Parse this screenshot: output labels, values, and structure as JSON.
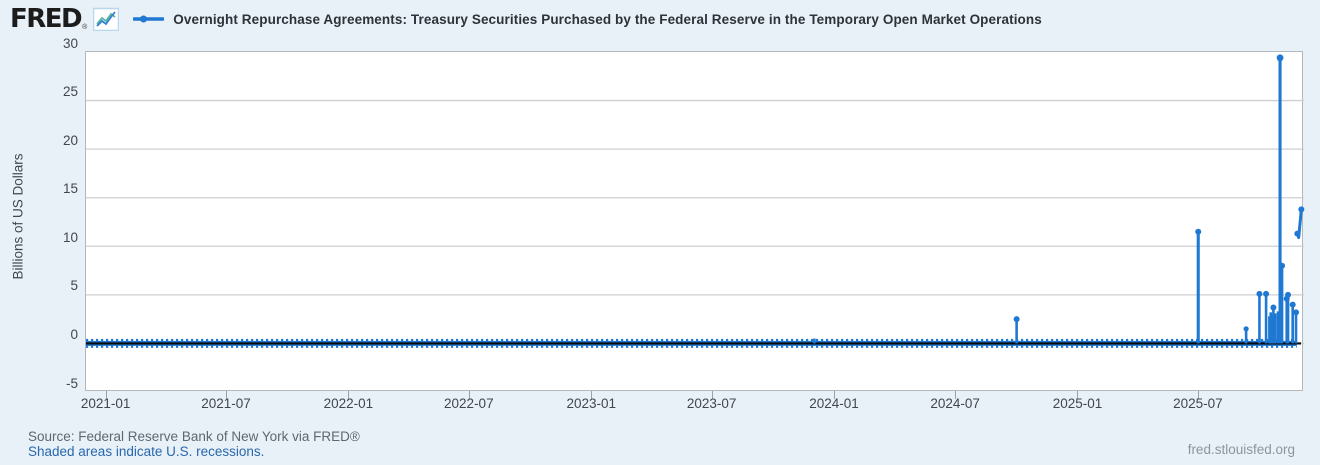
{
  "header": {
    "logo_text": "FRED",
    "logo_reg": "®",
    "series_title": "Overnight Repurchase Agreements: Treasury Securities Purchased by the Federal Reserve in the Temporary Open Market Operations"
  },
  "colors": {
    "background": "#e8f0f8",
    "plot_background": "#ffffff",
    "gridline": "#cfcfcf",
    "plot_border": "#b3b8bd",
    "series_blue": "#1f78d1",
    "zero_line_black": "#0a0a0a",
    "logo_icon_blue": "#2f7fd3",
    "logo_icon_teal": "#58b5a3",
    "link_blue": "#2968ad"
  },
  "chart_data": {
    "type": "line",
    "title": "Overnight Repurchase Agreements: Treasury Securities Purchased by the Federal Reserve in the Temporary Open Market Operations",
    "ylabel": "Billions of US Dollars",
    "ylim": [
      -5,
      30
    ],
    "yticks": [
      30,
      25,
      20,
      15,
      10,
      5,
      0,
      -5
    ],
    "xticks": [
      "2021-01",
      "2021-07",
      "2022-01",
      "2022-07",
      "2023-01",
      "2023-07",
      "2024-01",
      "2024-07",
      "2025-01",
      "2025-07"
    ],
    "x_range": [
      "2020-12-01",
      "2025-12-06"
    ],
    "grid": true,
    "legend_position": "top",
    "baseline": {
      "value": 0,
      "start": "2020-12-01",
      "end": "2025-11-25"
    },
    "spikes": [
      {
        "date": "2023-12-01",
        "value": 0.5,
        "dot": false
      },
      {
        "date": "2024-09-30",
        "value": 2.5,
        "dot": true
      },
      {
        "date": "2025-06-30",
        "value": 11.5,
        "dot": true
      },
      {
        "date": "2025-09-10",
        "value": 1.5,
        "dot": true
      },
      {
        "date": "2025-09-30",
        "value": 5.1,
        "dot": true
      },
      {
        "date": "2025-10-10",
        "value": 5.1,
        "dot": true
      },
      {
        "date": "2025-10-15",
        "value": 2.8,
        "dot": false
      },
      {
        "date": "2025-10-16",
        "value": 2.6,
        "dot": false
      },
      {
        "date": "2025-10-17",
        "value": 3.2,
        "dot": false
      },
      {
        "date": "2025-10-20",
        "value": 2.9,
        "dot": false
      },
      {
        "date": "2025-10-21",
        "value": 3.7,
        "dot": true
      },
      {
        "date": "2025-10-22",
        "value": 2.7,
        "dot": false
      },
      {
        "date": "2025-10-23",
        "value": 3.0,
        "dot": false
      },
      {
        "date": "2025-10-24",
        "value": 3.1,
        "dot": false
      },
      {
        "date": "2025-10-28",
        "value": 3.3,
        "dot": false
      },
      {
        "date": "2025-10-31",
        "value": 29.4,
        "dot": true
      },
      {
        "date": "2025-11-03",
        "value": 8.0,
        "dot": true
      },
      {
        "date": "2025-11-10",
        "value": 4.6,
        "dot": true
      },
      {
        "date": "2025-11-12",
        "value": 5.0,
        "dot": true
      },
      {
        "date": "2025-11-19",
        "value": 4.0,
        "dot": true
      },
      {
        "date": "2025-11-24",
        "value": 3.2,
        "dot": true
      }
    ],
    "tail_points": [
      {
        "date": "2025-11-26",
        "value": 11.3
      },
      {
        "date": "2025-11-28",
        "value": 10.9
      },
      {
        "date": "2025-12-02",
        "value": 13.8
      }
    ]
  },
  "footer": {
    "source_line": "Source: Federal Reserve Bank of New York via FRED®",
    "recession_note": "Shaded areas indicate U.S. recessions.",
    "site_link": "fred.stlouisfed.org"
  }
}
